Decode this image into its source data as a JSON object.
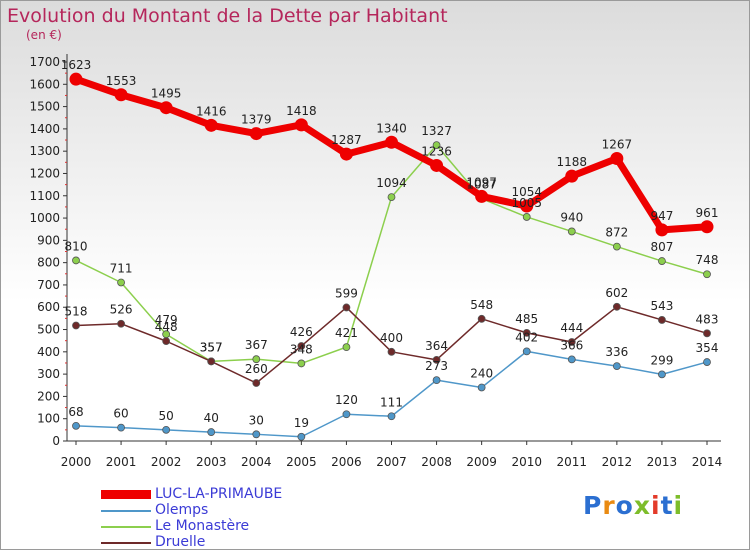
{
  "title": "Evolution du Montant de la Dette par Habitant",
  "unit": "(en €)",
  "logo": [
    "P",
    "r",
    "o",
    "x",
    "i",
    "t",
    "i"
  ],
  "chart_data": {
    "type": "line",
    "x": [
      "2000",
      "2001",
      "2002",
      "2003",
      "2004",
      "2005",
      "2006",
      "2007",
      "2008",
      "2009",
      "2010",
      "2011",
      "2012",
      "2013",
      "2014"
    ],
    "ylim": [
      0,
      1700
    ],
    "yticks": [
      0,
      100,
      200,
      300,
      400,
      500,
      600,
      700,
      800,
      900,
      1000,
      1100,
      1200,
      1300,
      1400,
      1500,
      1600,
      1700
    ],
    "grid": false,
    "legend_position": "bottom-left",
    "series": [
      {
        "name": "Olemps",
        "color": "#4f97c9",
        "values": [
          68,
          60,
          50,
          40,
          30,
          19,
          120,
          111,
          273,
          240,
          402,
          366,
          336,
          299,
          354
        ],
        "labels": [
          "68",
          "60",
          "50",
          "40",
          "30",
          "19",
          "120",
          "111",
          "273",
          "240",
          "402",
          "366",
          "336",
          "299",
          "354"
        ]
      },
      {
        "name": "Le Monastère",
        "color": "#8ccf4d",
        "values": [
          810,
          711,
          479,
          357,
          367,
          348,
          421,
          1094,
          1327,
          1087,
          1005,
          940,
          872,
          807,
          748
        ],
        "labels": [
          "810",
          "711",
          "479",
          "357",
          "367",
          "348",
          "421",
          "1094",
          "1327",
          "1087",
          "1005",
          "940",
          "872",
          "807",
          "748"
        ]
      },
      {
        "name": "Druelle",
        "color": "#6e2a2a",
        "values": [
          518,
          526,
          448,
          357,
          260,
          426,
          599,
          400,
          364,
          548,
          485,
          444,
          602,
          543,
          483
        ],
        "labels": [
          "518",
          "526",
          "448",
          "357",
          "260",
          "426",
          "599",
          "400",
          "364",
          "548",
          "485",
          "444",
          "602",
          "543",
          "483"
        ]
      },
      {
        "name": "LUC-LA-PRIMAUBE",
        "color": "#ee0000",
        "values": [
          1623,
          1553,
          1495,
          1416,
          1379,
          1418,
          1287,
          1340,
          1236,
          1097,
          1054,
          1188,
          1267,
          947,
          961
        ],
        "labels": [
          "1623",
          "1553",
          "1495",
          "1416",
          "1379",
          "1418",
          "1287",
          "1340",
          "1236",
          "1097",
          "1054",
          "1188",
          "1267",
          "947",
          "961"
        ]
      }
    ],
    "legend_order": [
      "LUC-LA-PRIMAUBE",
      "Olemps",
      "Le Monastère",
      "Druelle"
    ]
  }
}
